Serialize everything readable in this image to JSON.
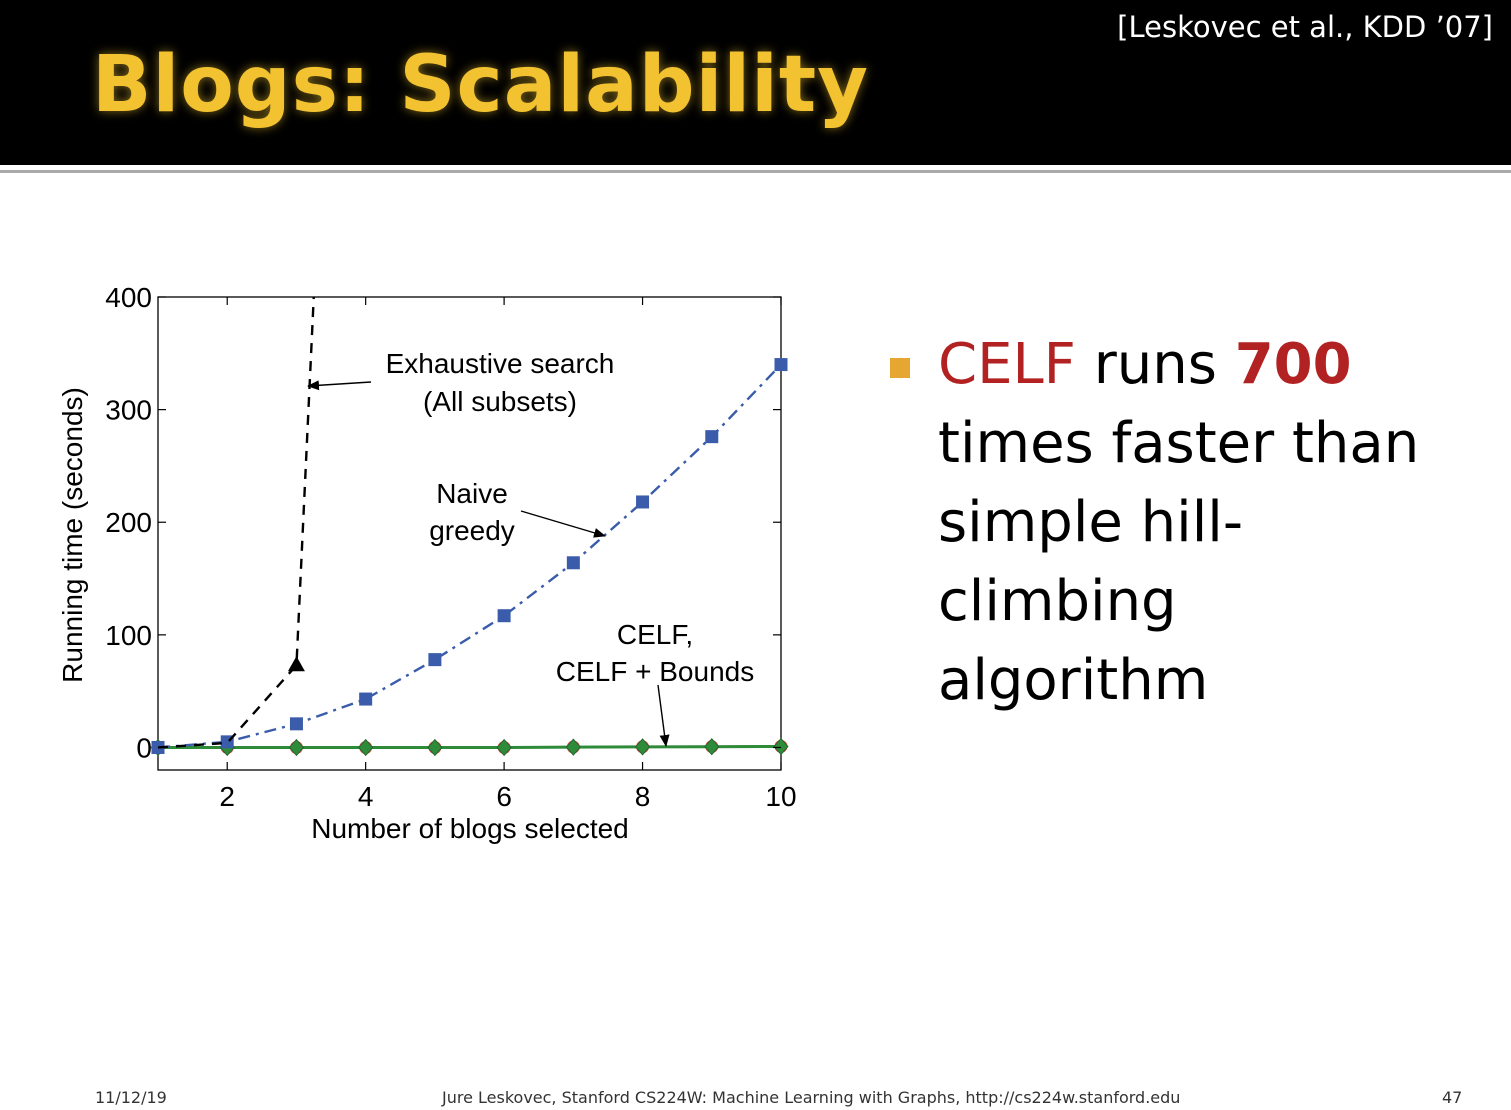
{
  "slide": {
    "title": "Blogs: Scalability",
    "citation": "[Leskovec et al., KDD ’07]"
  },
  "bullet": {
    "celf": "CELF",
    "runs": " runs ",
    "number": "700",
    "line2": "times faster than",
    "line3": "simple hill-",
    "line4": "climbing",
    "line5": "algorithm"
  },
  "footer": {
    "date": "11/12/19",
    "credit": "Jure Leskovec, Stanford CS224W: Machine Learning with Graphs, http://cs224w.stanford.edu",
    "page": "47"
  },
  "colors": {
    "title": "#f2c230",
    "bullet_square": "#e6a632",
    "highlight": "#b22222"
  },
  "chart_data": {
    "type": "line",
    "xlabel": "Number of blogs selected",
    "ylabel": "Running time (seconds)",
    "xlim": [
      1,
      10
    ],
    "ylim": [
      -20,
      400
    ],
    "xticks": [
      2,
      4,
      6,
      8,
      10
    ],
    "yticks": [
      0,
      100,
      200,
      300,
      400
    ],
    "grid": false,
    "series": [
      {
        "key": "exhaustive",
        "x": [
          1,
          2,
          3,
          3.25
        ],
        "values": [
          0,
          4,
          73,
          400
        ],
        "color": "#000000",
        "dash": "dashed",
        "marker": "triangle"
      },
      {
        "key": "naive",
        "x": [
          1,
          2,
          3,
          4,
          5,
          6,
          7,
          8,
          9,
          10
        ],
        "values": [
          0,
          5,
          21,
          43,
          78,
          117,
          164,
          218,
          276,
          340
        ],
        "color": "#3a5cab",
        "dash": "dashdot",
        "marker": "square"
      },
      {
        "key": "celf_bounds",
        "x": [
          1,
          2,
          3,
          4,
          5,
          6,
          7,
          8,
          9,
          10
        ],
        "values": [
          0,
          0,
          0,
          0,
          0,
          0,
          0.4,
          0.6,
          0.8,
          1
        ],
        "color": "#d9534f",
        "dash": "solid",
        "marker": "circle"
      },
      {
        "key": "celf",
        "x": [
          1,
          2,
          3,
          4,
          5,
          6,
          7,
          8,
          9,
          10
        ],
        "values": [
          0,
          0,
          0,
          0,
          0,
          0,
          0.3,
          0.5,
          0.7,
          0.9
        ],
        "color": "#2e8b3a",
        "dash": "solid",
        "marker": "diamond"
      }
    ],
    "annotations": [
      {
        "key": "ann_exhaustive_1",
        "text": "Exhaustive search"
      },
      {
        "key": "ann_exhaustive_2",
        "text": "(All subsets)"
      },
      {
        "key": "ann_naive_1",
        "text": "Naive"
      },
      {
        "key": "ann_naive_2",
        "text": "greedy"
      },
      {
        "key": "ann_celf_1",
        "text": "CELF,"
      },
      {
        "key": "ann_celf_2",
        "text": "CELF + Bounds"
      }
    ]
  }
}
